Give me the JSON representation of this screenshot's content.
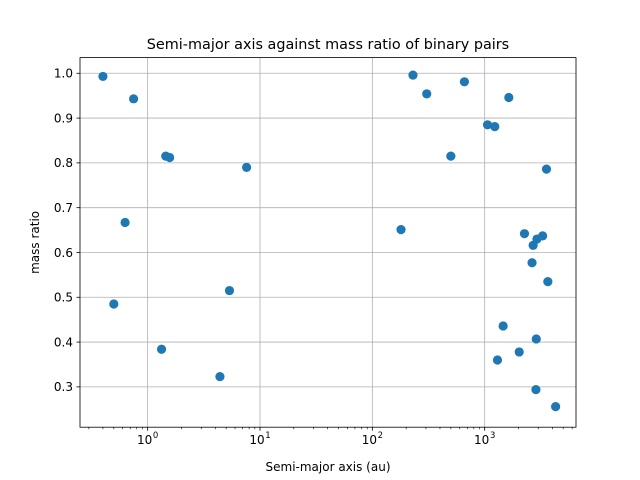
{
  "chart_data": {
    "type": "scatter",
    "title": "Semi-major axis against mass ratio of binary pairs",
    "xlabel": "Semi-major axis (au)",
    "ylabel": "mass ratio",
    "xscale": "log",
    "xlim": [
      0.25,
      6500
    ],
    "ylim": [
      0.21,
      1.035
    ],
    "grid": true,
    "marker_color": "#1f77b4",
    "x_ticks": [
      {
        "value": 1,
        "base": "10",
        "exp": "0"
      },
      {
        "value": 10,
        "base": "10",
        "exp": "1"
      },
      {
        "value": 100,
        "base": "10",
        "exp": "2"
      },
      {
        "value": 1000,
        "base": "10",
        "exp": "3"
      }
    ],
    "y_ticks": [
      {
        "value": 0.3,
        "label": "0.3"
      },
      {
        "value": 0.4,
        "label": "0.4"
      },
      {
        "value": 0.5,
        "label": "0.5"
      },
      {
        "value": 0.6,
        "label": "0.6"
      },
      {
        "value": 0.7,
        "label": "0.7"
      },
      {
        "value": 0.8,
        "label": "0.8"
      },
      {
        "value": 0.9,
        "label": "0.9"
      },
      {
        "value": 1.0,
        "label": "1.0"
      }
    ],
    "points": [
      {
        "x": 0.4,
        "y": 0.993
      },
      {
        "x": 0.5,
        "y": 0.485
      },
      {
        "x": 0.63,
        "y": 0.667
      },
      {
        "x": 0.75,
        "y": 0.943
      },
      {
        "x": 1.33,
        "y": 0.384
      },
      {
        "x": 1.45,
        "y": 0.815
      },
      {
        "x": 1.57,
        "y": 0.812
      },
      {
        "x": 4.4,
        "y": 0.323
      },
      {
        "x": 5.35,
        "y": 0.515
      },
      {
        "x": 7.6,
        "y": 0.79
      },
      {
        "x": 180,
        "y": 0.651
      },
      {
        "x": 230,
        "y": 0.996
      },
      {
        "x": 305,
        "y": 0.954
      },
      {
        "x": 500,
        "y": 0.815
      },
      {
        "x": 660,
        "y": 0.981
      },
      {
        "x": 1060,
        "y": 0.885
      },
      {
        "x": 1230,
        "y": 0.881
      },
      {
        "x": 1300,
        "y": 0.36
      },
      {
        "x": 1460,
        "y": 0.436
      },
      {
        "x": 1640,
        "y": 0.946
      },
      {
        "x": 2030,
        "y": 0.378
      },
      {
        "x": 2260,
        "y": 0.642
      },
      {
        "x": 2640,
        "y": 0.577
      },
      {
        "x": 2700,
        "y": 0.616
      },
      {
        "x": 2860,
        "y": 0.294
      },
      {
        "x": 2880,
        "y": 0.407
      },
      {
        "x": 2920,
        "y": 0.63
      },
      {
        "x": 3280,
        "y": 0.637
      },
      {
        "x": 3550,
        "y": 0.786
      },
      {
        "x": 3650,
        "y": 0.535
      },
      {
        "x": 4280,
        "y": 0.256
      }
    ]
  }
}
